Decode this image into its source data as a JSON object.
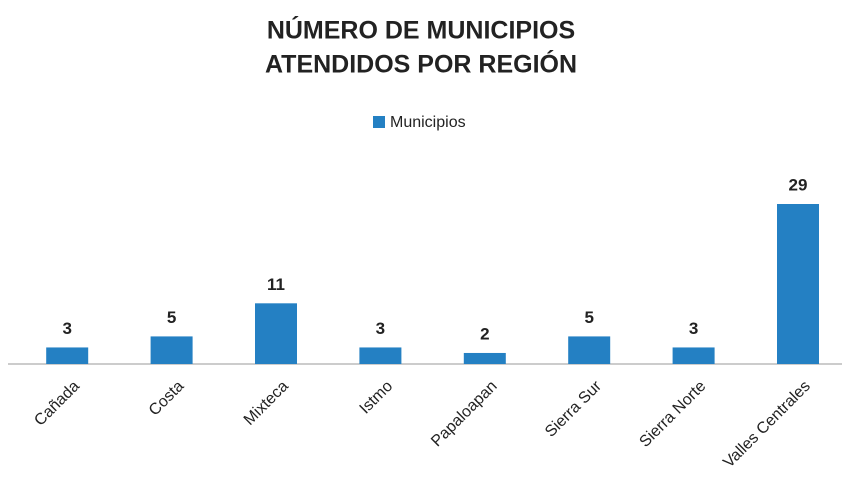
{
  "chart_data": {
    "type": "bar",
    "title": [
      "NÚMERO DE MUNICIPIOS",
      "ATENDIDOS POR REGIÓN"
    ],
    "categories": [
      "Cañada",
      "Costa",
      "Mixteca",
      "Istmo",
      "Papaloapan",
      "Sierra Sur",
      "Sierra Norte",
      "Valles Centrales"
    ],
    "series": [
      {
        "name": "Municipios",
        "color": "#2480c3",
        "values": [
          3,
          5,
          11,
          3,
          2,
          5,
          3,
          29
        ]
      }
    ],
    "legend": "top"
  }
}
